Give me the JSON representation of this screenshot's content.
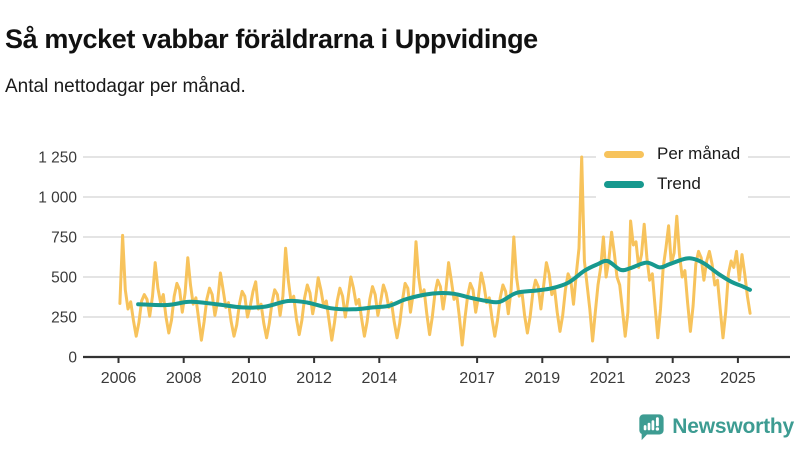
{
  "header": {
    "title": "Så mycket vabbar föräldrarna i Uppvidinge",
    "subtitle": "Antal nettodagar per månad."
  },
  "legend": {
    "items": [
      {
        "label": "Per månad",
        "color": "#F7C35C"
      },
      {
        "label": "Trend",
        "color": "#17998F"
      }
    ]
  },
  "footer": {
    "brand": "Newsworthy",
    "brand_color": "#3D9C92"
  },
  "chart_data": {
    "type": "line",
    "title": "Så mycket vabbar föräldrarna i Uppvidinge",
    "subtitle": "Antal nettodagar per månad.",
    "ylabel": "",
    "xlabel": "",
    "ylim": [
      0,
      1250
    ],
    "grid": "horizontal",
    "legend_position": "top-right",
    "colors": {
      "per_manad": "#F7C35C",
      "trend": "#17998F",
      "grid": "#DBDBDB",
      "axis": "#333333",
      "tick_text": "#3a3a3a"
    },
    "y_ticks": [
      {
        "value": 0,
        "label": "0"
      },
      {
        "value": 250,
        "label": "250"
      },
      {
        "value": 500,
        "label": "500"
      },
      {
        "value": 750,
        "label": "750"
      },
      {
        "value": 1000,
        "label": "1 000"
      },
      {
        "value": 1250,
        "label": "1 250"
      }
    ],
    "x_ticks": [
      {
        "year": 2006,
        "label": "2006"
      },
      {
        "year": 2008,
        "label": "2008"
      },
      {
        "year": 2010,
        "label": "2010"
      },
      {
        "year": 2012,
        "label": "2012"
      },
      {
        "year": 2014,
        "label": "2014"
      },
      {
        "year": 2017,
        "label": "2017"
      },
      {
        "year": 2019,
        "label": "2019"
      },
      {
        "year": 2021,
        "label": "2021"
      },
      {
        "year": 2023,
        "label": "2023"
      },
      {
        "year": 2025,
        "label": "2025"
      }
    ],
    "series": [
      {
        "name": "Per månad",
        "frequency": "monthly",
        "start_year": 2006,
        "start_month": 1,
        "values": [
          335,
          760,
          420,
          300,
          345,
          230,
          130,
          215,
          350,
          390,
          360,
          255,
          380,
          590,
          430,
          340,
          390,
          250,
          150,
          230,
          380,
          460,
          420,
          280,
          400,
          620,
          450,
          330,
          370,
          240,
          105,
          220,
          360,
          430,
          390,
          260,
          350,
          525,
          420,
          310,
          340,
          220,
          130,
          200,
          330,
          410,
          380,
          250,
          320,
          410,
          470,
          300,
          330,
          210,
          120,
          210,
          340,
          420,
          390,
          260,
          380,
          680,
          480,
          350,
          380,
          240,
          140,
          230,
          370,
          450,
          400,
          270,
          360,
          495,
          420,
          320,
          350,
          230,
          105,
          215,
          350,
          430,
          380,
          250,
          370,
          500,
          430,
          330,
          360,
          240,
          130,
          220,
          360,
          440,
          390,
          260,
          350,
          450,
          400,
          310,
          340,
          220,
          120,
          210,
          350,
          460,
          430,
          280,
          400,
          720,
          500,
          380,
          420,
          270,
          140,
          250,
          400,
          480,
          440,
          300,
          420,
          590,
          480,
          360,
          390,
          250,
          75,
          240,
          380,
          460,
          420,
          280,
          380,
          525,
          450,
          340,
          370,
          240,
          130,
          230,
          370,
          450,
          410,
          270,
          420,
          750,
          500,
          380,
          410,
          260,
          150,
          250,
          400,
          480,
          440,
          300,
          450,
          590,
          520,
          390,
          430,
          280,
          160,
          260,
          420,
          520,
          480,
          330,
          520,
          680,
          1250,
          600,
          450,
          300,
          100,
          280,
          450,
          560,
          750,
          500,
          610,
          780,
          650,
          500,
          450,
          300,
          130,
          280,
          850,
          700,
          720,
          560,
          640,
          830,
          620,
          480,
          520,
          320,
          120,
          300,
          560,
          680,
          820,
          580,
          650,
          880,
          640,
          500,
          540,
          340,
          160,
          320,
          580,
          660,
          620,
          480,
          600,
          660,
          580,
          450,
          480,
          300,
          120,
          280,
          520,
          600,
          560,
          660,
          480,
          640,
          520,
          380,
          273
        ]
      },
      {
        "name": "Trend",
        "frequency": "anchors",
        "x": [
          2006.6,
          2007.5,
          2008.2,
          2009.0,
          2009.8,
          2010.5,
          2011.2,
          2011.8,
          2012.5,
          2013.2,
          2013.8,
          2014.3,
          2014.8,
          2015.4,
          2015.9,
          2016.3,
          2016.8,
          2017.3,
          2017.7,
          2018.2,
          2018.8,
          2019.3,
          2019.8,
          2020.3,
          2020.7,
          2021.0,
          2021.4,
          2021.7,
          2022.2,
          2022.6,
          2022.9,
          2023.4,
          2023.7,
          2024.0,
          2024.4,
          2024.8,
          2025.1,
          2025.37
        ],
        "values": [
          330,
          325,
          345,
          330,
          310,
          315,
          350,
          340,
          305,
          298,
          310,
          320,
          360,
          390,
          400,
          395,
          370,
          350,
          345,
          400,
          415,
          430,
          465,
          540,
          580,
          600,
          545,
          555,
          590,
          560,
          580,
          615,
          610,
          580,
          520,
          470,
          445,
          420
        ]
      }
    ]
  }
}
